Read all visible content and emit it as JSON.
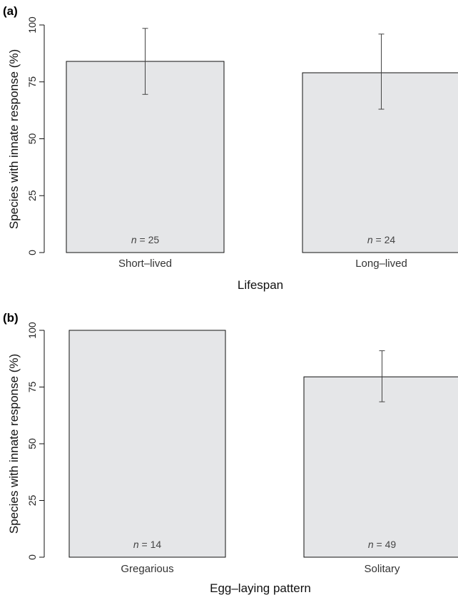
{
  "chart_data": [
    {
      "type": "bar",
      "panel_label": "(a)",
      "categories": [
        "Short–lived",
        "Long–lived"
      ],
      "values": [
        84,
        79
      ],
      "error_low": [
        69.5,
        63
      ],
      "error_high": [
        98.5,
        96
      ],
      "annotations": [
        "25",
        "24"
      ],
      "xlabel": "Lifespan",
      "ylabel": "Species with innate response (%)",
      "ylim": [
        0,
        100
      ],
      "yticks": [
        "0",
        "25",
        "50",
        "75",
        "100"
      ],
      "grid": false
    },
    {
      "type": "bar",
      "panel_label": "(b)",
      "categories": [
        "Gregarious",
        "Solitary"
      ],
      "values": [
        100,
        79.5
      ],
      "error_low": [
        null,
        68.5
      ],
      "error_high": [
        null,
        91
      ],
      "annotations": [
        "14",
        "49"
      ],
      "xlabel": "Egg–laying pattern",
      "ylabel": "Species with innate response (%)",
      "ylim": [
        0,
        100
      ],
      "yticks": [
        "0",
        "25",
        "50",
        "75",
        "100"
      ],
      "grid": false
    }
  ]
}
